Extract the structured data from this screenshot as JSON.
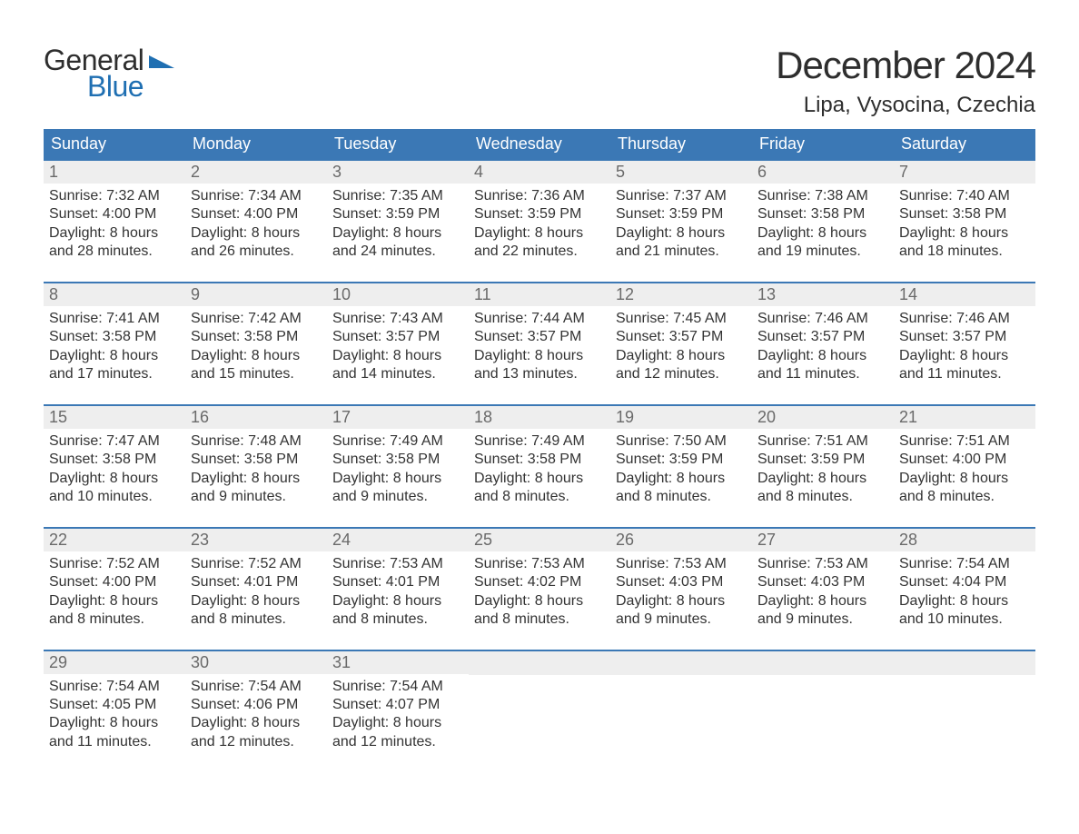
{
  "brand": {
    "part1": "General",
    "part2": "Blue"
  },
  "title": "December 2024",
  "location": "Lipa, Vysocina, Czechia",
  "colors": {
    "header_bg": "#3b78b5",
    "accent": "#1f6fb2",
    "daynum_bg": "#eeeeee",
    "text": "#333333"
  },
  "days_of_week": [
    "Sunday",
    "Monday",
    "Tuesday",
    "Wednesday",
    "Thursday",
    "Friday",
    "Saturday"
  ],
  "weeks": [
    [
      {
        "n": "1",
        "sunrise": "Sunrise: 7:32 AM",
        "sunset": "Sunset: 4:00 PM",
        "d1": "Daylight: 8 hours",
        "d2": "and 28 minutes."
      },
      {
        "n": "2",
        "sunrise": "Sunrise: 7:34 AM",
        "sunset": "Sunset: 4:00 PM",
        "d1": "Daylight: 8 hours",
        "d2": "and 26 minutes."
      },
      {
        "n": "3",
        "sunrise": "Sunrise: 7:35 AM",
        "sunset": "Sunset: 3:59 PM",
        "d1": "Daylight: 8 hours",
        "d2": "and 24 minutes."
      },
      {
        "n": "4",
        "sunrise": "Sunrise: 7:36 AM",
        "sunset": "Sunset: 3:59 PM",
        "d1": "Daylight: 8 hours",
        "d2": "and 22 minutes."
      },
      {
        "n": "5",
        "sunrise": "Sunrise: 7:37 AM",
        "sunset": "Sunset: 3:59 PM",
        "d1": "Daylight: 8 hours",
        "d2": "and 21 minutes."
      },
      {
        "n": "6",
        "sunrise": "Sunrise: 7:38 AM",
        "sunset": "Sunset: 3:58 PM",
        "d1": "Daylight: 8 hours",
        "d2": "and 19 minutes."
      },
      {
        "n": "7",
        "sunrise": "Sunrise: 7:40 AM",
        "sunset": "Sunset: 3:58 PM",
        "d1": "Daylight: 8 hours",
        "d2": "and 18 minutes."
      }
    ],
    [
      {
        "n": "8",
        "sunrise": "Sunrise: 7:41 AM",
        "sunset": "Sunset: 3:58 PM",
        "d1": "Daylight: 8 hours",
        "d2": "and 17 minutes."
      },
      {
        "n": "9",
        "sunrise": "Sunrise: 7:42 AM",
        "sunset": "Sunset: 3:58 PM",
        "d1": "Daylight: 8 hours",
        "d2": "and 15 minutes."
      },
      {
        "n": "10",
        "sunrise": "Sunrise: 7:43 AM",
        "sunset": "Sunset: 3:57 PM",
        "d1": "Daylight: 8 hours",
        "d2": "and 14 minutes."
      },
      {
        "n": "11",
        "sunrise": "Sunrise: 7:44 AM",
        "sunset": "Sunset: 3:57 PM",
        "d1": "Daylight: 8 hours",
        "d2": "and 13 minutes."
      },
      {
        "n": "12",
        "sunrise": "Sunrise: 7:45 AM",
        "sunset": "Sunset: 3:57 PM",
        "d1": "Daylight: 8 hours",
        "d2": "and 12 minutes."
      },
      {
        "n": "13",
        "sunrise": "Sunrise: 7:46 AM",
        "sunset": "Sunset: 3:57 PM",
        "d1": "Daylight: 8 hours",
        "d2": "and 11 minutes."
      },
      {
        "n": "14",
        "sunrise": "Sunrise: 7:46 AM",
        "sunset": "Sunset: 3:57 PM",
        "d1": "Daylight: 8 hours",
        "d2": "and 11 minutes."
      }
    ],
    [
      {
        "n": "15",
        "sunrise": "Sunrise: 7:47 AM",
        "sunset": "Sunset: 3:58 PM",
        "d1": "Daylight: 8 hours",
        "d2": "and 10 minutes."
      },
      {
        "n": "16",
        "sunrise": "Sunrise: 7:48 AM",
        "sunset": "Sunset: 3:58 PM",
        "d1": "Daylight: 8 hours",
        "d2": "and 9 minutes."
      },
      {
        "n": "17",
        "sunrise": "Sunrise: 7:49 AM",
        "sunset": "Sunset: 3:58 PM",
        "d1": "Daylight: 8 hours",
        "d2": "and 9 minutes."
      },
      {
        "n": "18",
        "sunrise": "Sunrise: 7:49 AM",
        "sunset": "Sunset: 3:58 PM",
        "d1": "Daylight: 8 hours",
        "d2": "and 8 minutes."
      },
      {
        "n": "19",
        "sunrise": "Sunrise: 7:50 AM",
        "sunset": "Sunset: 3:59 PM",
        "d1": "Daylight: 8 hours",
        "d2": "and 8 minutes."
      },
      {
        "n": "20",
        "sunrise": "Sunrise: 7:51 AM",
        "sunset": "Sunset: 3:59 PM",
        "d1": "Daylight: 8 hours",
        "d2": "and 8 minutes."
      },
      {
        "n": "21",
        "sunrise": "Sunrise: 7:51 AM",
        "sunset": "Sunset: 4:00 PM",
        "d1": "Daylight: 8 hours",
        "d2": "and 8 minutes."
      }
    ],
    [
      {
        "n": "22",
        "sunrise": "Sunrise: 7:52 AM",
        "sunset": "Sunset: 4:00 PM",
        "d1": "Daylight: 8 hours",
        "d2": "and 8 minutes."
      },
      {
        "n": "23",
        "sunrise": "Sunrise: 7:52 AM",
        "sunset": "Sunset: 4:01 PM",
        "d1": "Daylight: 8 hours",
        "d2": "and 8 minutes."
      },
      {
        "n": "24",
        "sunrise": "Sunrise: 7:53 AM",
        "sunset": "Sunset: 4:01 PM",
        "d1": "Daylight: 8 hours",
        "d2": "and 8 minutes."
      },
      {
        "n": "25",
        "sunrise": "Sunrise: 7:53 AM",
        "sunset": "Sunset: 4:02 PM",
        "d1": "Daylight: 8 hours",
        "d2": "and 8 minutes."
      },
      {
        "n": "26",
        "sunrise": "Sunrise: 7:53 AM",
        "sunset": "Sunset: 4:03 PM",
        "d1": "Daylight: 8 hours",
        "d2": "and 9 minutes."
      },
      {
        "n": "27",
        "sunrise": "Sunrise: 7:53 AM",
        "sunset": "Sunset: 4:03 PM",
        "d1": "Daylight: 8 hours",
        "d2": "and 9 minutes."
      },
      {
        "n": "28",
        "sunrise": "Sunrise: 7:54 AM",
        "sunset": "Sunset: 4:04 PM",
        "d1": "Daylight: 8 hours",
        "d2": "and 10 minutes."
      }
    ],
    [
      {
        "n": "29",
        "sunrise": "Sunrise: 7:54 AM",
        "sunset": "Sunset: 4:05 PM",
        "d1": "Daylight: 8 hours",
        "d2": "and 11 minutes."
      },
      {
        "n": "30",
        "sunrise": "Sunrise: 7:54 AM",
        "sunset": "Sunset: 4:06 PM",
        "d1": "Daylight: 8 hours",
        "d2": "and 12 minutes."
      },
      {
        "n": "31",
        "sunrise": "Sunrise: 7:54 AM",
        "sunset": "Sunset: 4:07 PM",
        "d1": "Daylight: 8 hours",
        "d2": "and 12 minutes."
      },
      {
        "empty": true
      },
      {
        "empty": true
      },
      {
        "empty": true
      },
      {
        "empty": true
      }
    ]
  ]
}
